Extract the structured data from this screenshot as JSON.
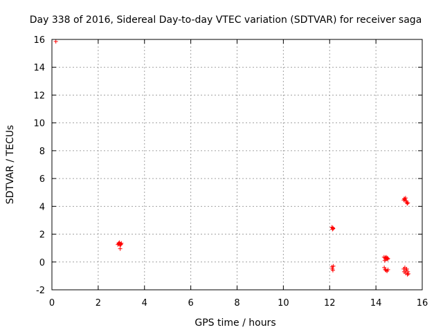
{
  "chart_data": {
    "type": "scatter",
    "title": "Day 338 of 2016, Sidereal Day-to-day VTEC variation (SDTVAR) for receiver saga",
    "xlabel": "GPS time / hours",
    "ylabel": "SDTVAR / TECUs",
    "xlim": [
      0,
      16
    ],
    "ylim": [
      -2,
      16
    ],
    "xticks": [
      0,
      2,
      4,
      6,
      8,
      10,
      12,
      14,
      16
    ],
    "yticks": [
      -2,
      0,
      2,
      4,
      6,
      8,
      10,
      12,
      14,
      16
    ],
    "grid": true,
    "marker": "plus",
    "color": "#ff0000",
    "series": [
      {
        "name": "SDTVAR",
        "points": [
          [
            0.17,
            15.85
          ],
          [
            2.85,
            1.25
          ],
          [
            2.88,
            1.35
          ],
          [
            2.9,
            1.3
          ],
          [
            2.92,
            1.4
          ],
          [
            2.94,
            1.2
          ],
          [
            2.96,
            1.3
          ],
          [
            2.98,
            1.25
          ],
          [
            3.0,
            1.35
          ],
          [
            2.95,
            0.95
          ],
          [
            12.1,
            2.5
          ],
          [
            12.12,
            2.35
          ],
          [
            12.14,
            2.45
          ],
          [
            12.15,
            2.4
          ],
          [
            12.1,
            -0.35
          ],
          [
            12.12,
            -0.5
          ],
          [
            12.14,
            -0.6
          ],
          [
            12.16,
            -0.3
          ],
          [
            14.35,
            0.35
          ],
          [
            14.38,
            0.1
          ],
          [
            14.4,
            0.3
          ],
          [
            14.42,
            0.2
          ],
          [
            14.44,
            0.35
          ],
          [
            14.46,
            0.25
          ],
          [
            14.48,
            0.3
          ],
          [
            14.5,
            0.2
          ],
          [
            14.52,
            0.25
          ],
          [
            14.36,
            -0.4
          ],
          [
            14.4,
            -0.55
          ],
          [
            14.44,
            -0.6
          ],
          [
            14.48,
            -0.65
          ],
          [
            14.52,
            -0.55
          ],
          [
            15.2,
            4.45
          ],
          [
            15.22,
            4.55
          ],
          [
            15.25,
            4.5
          ],
          [
            15.28,
            4.6
          ],
          [
            15.3,
            4.4
          ],
          [
            15.32,
            4.3
          ],
          [
            15.35,
            4.2
          ],
          [
            15.38,
            4.25
          ],
          [
            15.2,
            -0.5
          ],
          [
            15.22,
            -0.7
          ],
          [
            15.25,
            -0.4
          ],
          [
            15.28,
            -0.8
          ],
          [
            15.3,
            -0.6
          ],
          [
            15.33,
            -0.5
          ],
          [
            15.36,
            -0.9
          ],
          [
            15.38,
            -0.7
          ],
          [
            15.4,
            -0.85
          ]
        ]
      }
    ]
  }
}
